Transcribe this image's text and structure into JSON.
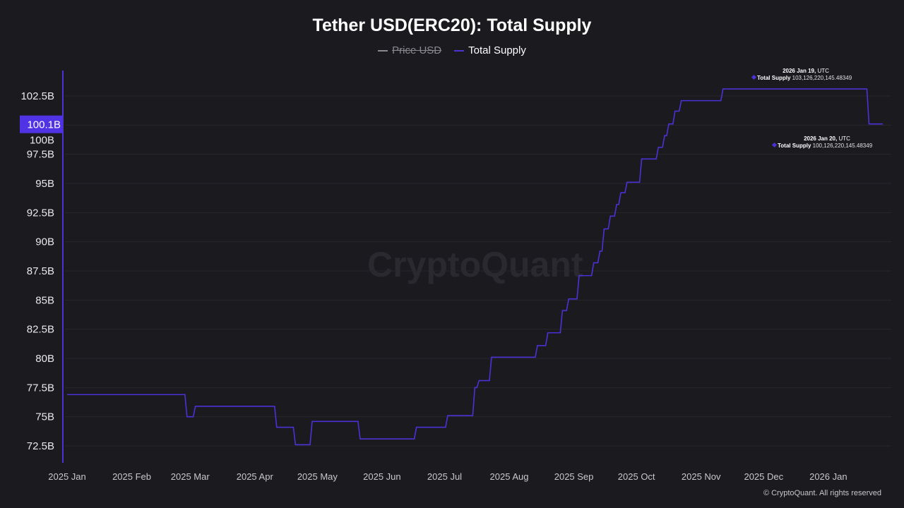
{
  "chart_data": {
    "type": "line",
    "title": "Tether USD(ERC20): Total Supply",
    "legend": [
      {
        "name": "Price USD",
        "color": "#8a8990",
        "hidden": true
      },
      {
        "name": "Total Supply",
        "color": "#4a33d6",
        "hidden": false
      }
    ],
    "legend_placement": "top-center",
    "xlabel": "",
    "ylabel": "",
    "x_ticks": [
      "2025 Jan",
      "2025 Feb",
      "2025 Mar",
      "2025 Apr",
      "2025 May",
      "2025 Jun",
      "2025 Jul",
      "2025 Aug",
      "2025 Sep",
      "2025 Oct",
      "2025 Nov",
      "2025 Dec",
      "2026 Jan"
    ],
    "x_tick_dates": [
      "2025-01-01",
      "2025-02-01",
      "2025-03-01",
      "2025-04-01",
      "2025-05-01",
      "2025-06-01",
      "2025-07-01",
      "2025-08-01",
      "2025-09-01",
      "2025-10-01",
      "2025-11-01",
      "2025-12-01",
      "2026-01-01"
    ],
    "xlim": [
      "2025-01-01",
      "2026-01-22"
    ],
    "y_ticks": [
      "72.5B",
      "75B",
      "77.5B",
      "80B",
      "82.5B",
      "85B",
      "87.5B",
      "90B",
      "92.5B",
      "95B",
      "97.5B",
      "100B",
      "102.5B"
    ],
    "y_tick_values": [
      72.5,
      75,
      77.5,
      80,
      82.5,
      85,
      87.5,
      90,
      92.5,
      95,
      97.5,
      100,
      102.5
    ],
    "ylim": [
      71.0,
      104.5
    ],
    "y_unit": "B",
    "grid": true,
    "current_value_label": "100.1B",
    "series": [
      {
        "name": "Total Supply",
        "step_changes": [
          [
            "2025-01-01",
            76.9
          ],
          [
            "2025-02-27",
            75.0
          ],
          [
            "2025-03-03",
            75.9
          ],
          [
            "2025-04-11",
            74.1
          ],
          [
            "2025-04-20",
            72.6
          ],
          [
            "2025-04-28",
            74.6
          ],
          [
            "2025-05-21",
            73.1
          ],
          [
            "2025-06-17",
            74.1
          ],
          [
            "2025-07-02",
            75.1
          ],
          [
            "2025-07-15",
            77.5
          ],
          [
            "2025-07-17",
            78.1
          ],
          [
            "2025-07-23",
            80.1
          ],
          [
            "2025-08-14",
            81.1
          ],
          [
            "2025-08-19",
            82.2
          ],
          [
            "2025-08-26",
            84.1
          ],
          [
            "2025-08-29",
            85.1
          ],
          [
            "2025-09-03",
            87.1
          ],
          [
            "2025-09-10",
            88.2
          ],
          [
            "2025-09-13",
            89.2
          ],
          [
            "2025-09-15",
            91.1
          ],
          [
            "2025-09-18",
            92.2
          ],
          [
            "2025-09-21",
            93.2
          ],
          [
            "2025-09-23",
            94.2
          ],
          [
            "2025-09-26",
            95.1
          ],
          [
            "2025-10-03",
            97.1
          ],
          [
            "2025-10-11",
            98.1
          ],
          [
            "2025-10-14",
            99.1
          ],
          [
            "2025-10-16",
            100.1
          ],
          [
            "2025-10-19",
            101.2
          ],
          [
            "2025-10-22",
            102.1
          ],
          [
            "2025-11-11",
            103.1
          ],
          [
            "2026-01-20",
            100.1
          ],
          [
            "2026-01-22",
            100.1
          ]
        ]
      }
    ],
    "tooltips": [
      {
        "date": "2026 Jan 19",
        "tz": "UTC",
        "series": "Total Supply",
        "value": "103,126,220,145.48349"
      },
      {
        "date": "2026 Jan 20",
        "tz": "UTC",
        "series": "Total Supply",
        "value": "100,126,220,145.48349"
      }
    ],
    "colors": {
      "background": "#1b1a1f",
      "line": "#4a33d6",
      "badge": "#5133e6",
      "grid": "#28272d",
      "axis": "#4a33d6"
    }
  },
  "watermark": "CryptoQuant",
  "footer": "© CryptoQuant. All rights reserved"
}
